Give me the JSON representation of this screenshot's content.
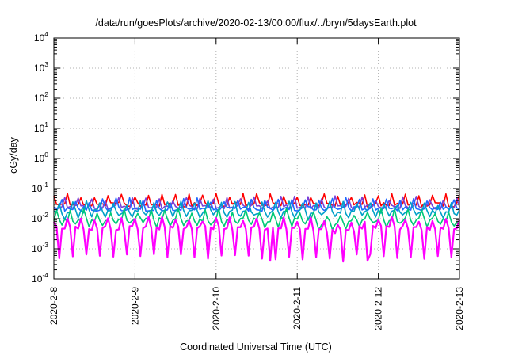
{
  "chart_data": {
    "type": "line",
    "title": "/data/run/goesPlots/archive/2020-02-13/00:00/flux/../bryn/5daysEarth.plot",
    "xlabel": "Coordinated Universal Time (UTC)",
    "ylabel": "cGy/day",
    "yscale": "log",
    "ylim": [
      0.0001,
      10000
    ],
    "xlim": [
      "2020-2-8",
      "2020-2-13"
    ],
    "x_tick_labels": [
      "2020-2-8",
      "2020-2-9",
      "2020-2-10",
      "2020-2-11",
      "2020-2-12",
      "2020-2-13"
    ],
    "y_tick_labels": [
      {
        "base": "10",
        "exp": "-4",
        "value": 0.0001
      },
      {
        "base": "10",
        "exp": "-3",
        "value": 0.001
      },
      {
        "base": "10",
        "exp": "-2",
        "value": 0.01
      },
      {
        "base": "10",
        "exp": "-1",
        "value": 0.1
      },
      {
        "base": "10",
        "exp": "0",
        "value": 1
      },
      {
        "base": "10",
        "exp": "1",
        "value": 10
      },
      {
        "base": "10",
        "exp": "2",
        "value": 100
      },
      {
        "base": "10",
        "exp": "3",
        "value": 1000
      },
      {
        "base": "10",
        "exp": "4",
        "value": 10000
      }
    ],
    "grid": true,
    "legend": "none",
    "series": [
      {
        "color": "#ff0000",
        "baseline": 0.029,
        "spike_max": 0.075,
        "dip_min": 0.018,
        "step": 0.033
      },
      {
        "color": "#7b3fd8",
        "baseline": 0.024,
        "spike_max": 0.065,
        "dip_min": 0.012,
        "step": 0.033
      },
      {
        "color": "#1e6bff",
        "baseline": 0.021,
        "spike_max": 0.06,
        "dip_min": 0.01,
        "step": 0.033
      },
      {
        "color": "#00a0c8",
        "baseline": 0.017,
        "spike_max": 0.04,
        "dip_min": 0.008,
        "step": 0.033
      },
      {
        "color": "#00c878",
        "baseline": 0.009,
        "spike_max": 0.025,
        "dip_min": 0.0045,
        "step": 0.033
      },
      {
        "color": "#ff00ff",
        "baseline": 0.0048,
        "spike_max": 0.02,
        "dip_min": 0.0004,
        "step": 0.033
      }
    ]
  }
}
